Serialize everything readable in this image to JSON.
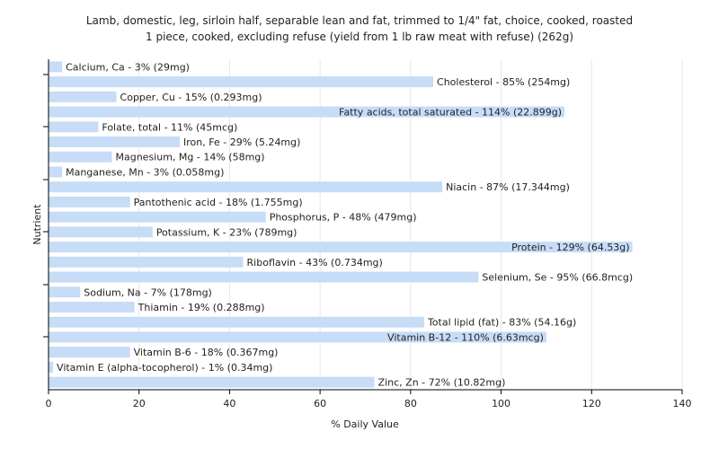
{
  "chart_data": {
    "type": "bar",
    "orientation": "horizontal",
    "title_lines": [
      "Lamb, domestic, leg, sirloin half, separable lean and fat, trimmed to 1/4\" fat, choice, cooked, roasted",
      "1 piece, cooked, excluding refuse (yield from 1 lb raw meat with refuse) (262g)"
    ],
    "xlabel": "% Daily Value",
    "ylabel": "Nutrient",
    "xlim": [
      0,
      140
    ],
    "xticks": [
      0,
      20,
      40,
      60,
      80,
      100,
      120,
      140
    ],
    "grid": true,
    "bar_color": "#c6dcf7",
    "categories": [
      "Calcium, Ca - 3% (29mg)",
      "Cholesterol - 85% (254mg)",
      "Copper, Cu - 15% (0.293mg)",
      "Fatty acids, total saturated - 114% (22.899g)",
      "Folate, total - 11% (45mcg)",
      "Iron, Fe - 29% (5.24mg)",
      "Magnesium, Mg - 14% (58mg)",
      "Manganese, Mn - 3% (0.058mg)",
      "Niacin - 87% (17.344mg)",
      "Pantothenic acid - 18% (1.755mg)",
      "Phosphorus, P - 48% (479mg)",
      "Potassium, K - 23% (789mg)",
      "Protein - 129% (64.53g)",
      "Riboflavin - 43% (0.734mg)",
      "Selenium, Se - 95% (66.8mcg)",
      "Sodium, Na - 7% (178mg)",
      "Thiamin - 19% (0.288mg)",
      "Total lipid (fat) - 83% (54.16g)",
      "Vitamin B-12 - 110% (6.63mcg)",
      "Vitamin B-6 - 18% (0.367mg)",
      "Vitamin E (alpha-tocopherol) - 1% (0.34mg)",
      "Zinc, Zn - 72% (10.82mg)"
    ],
    "values": [
      3,
      85,
      15,
      114,
      11,
      29,
      14,
      3,
      87,
      18,
      48,
      23,
      129,
      43,
      95,
      7,
      19,
      83,
      110,
      18,
      1,
      72
    ]
  }
}
